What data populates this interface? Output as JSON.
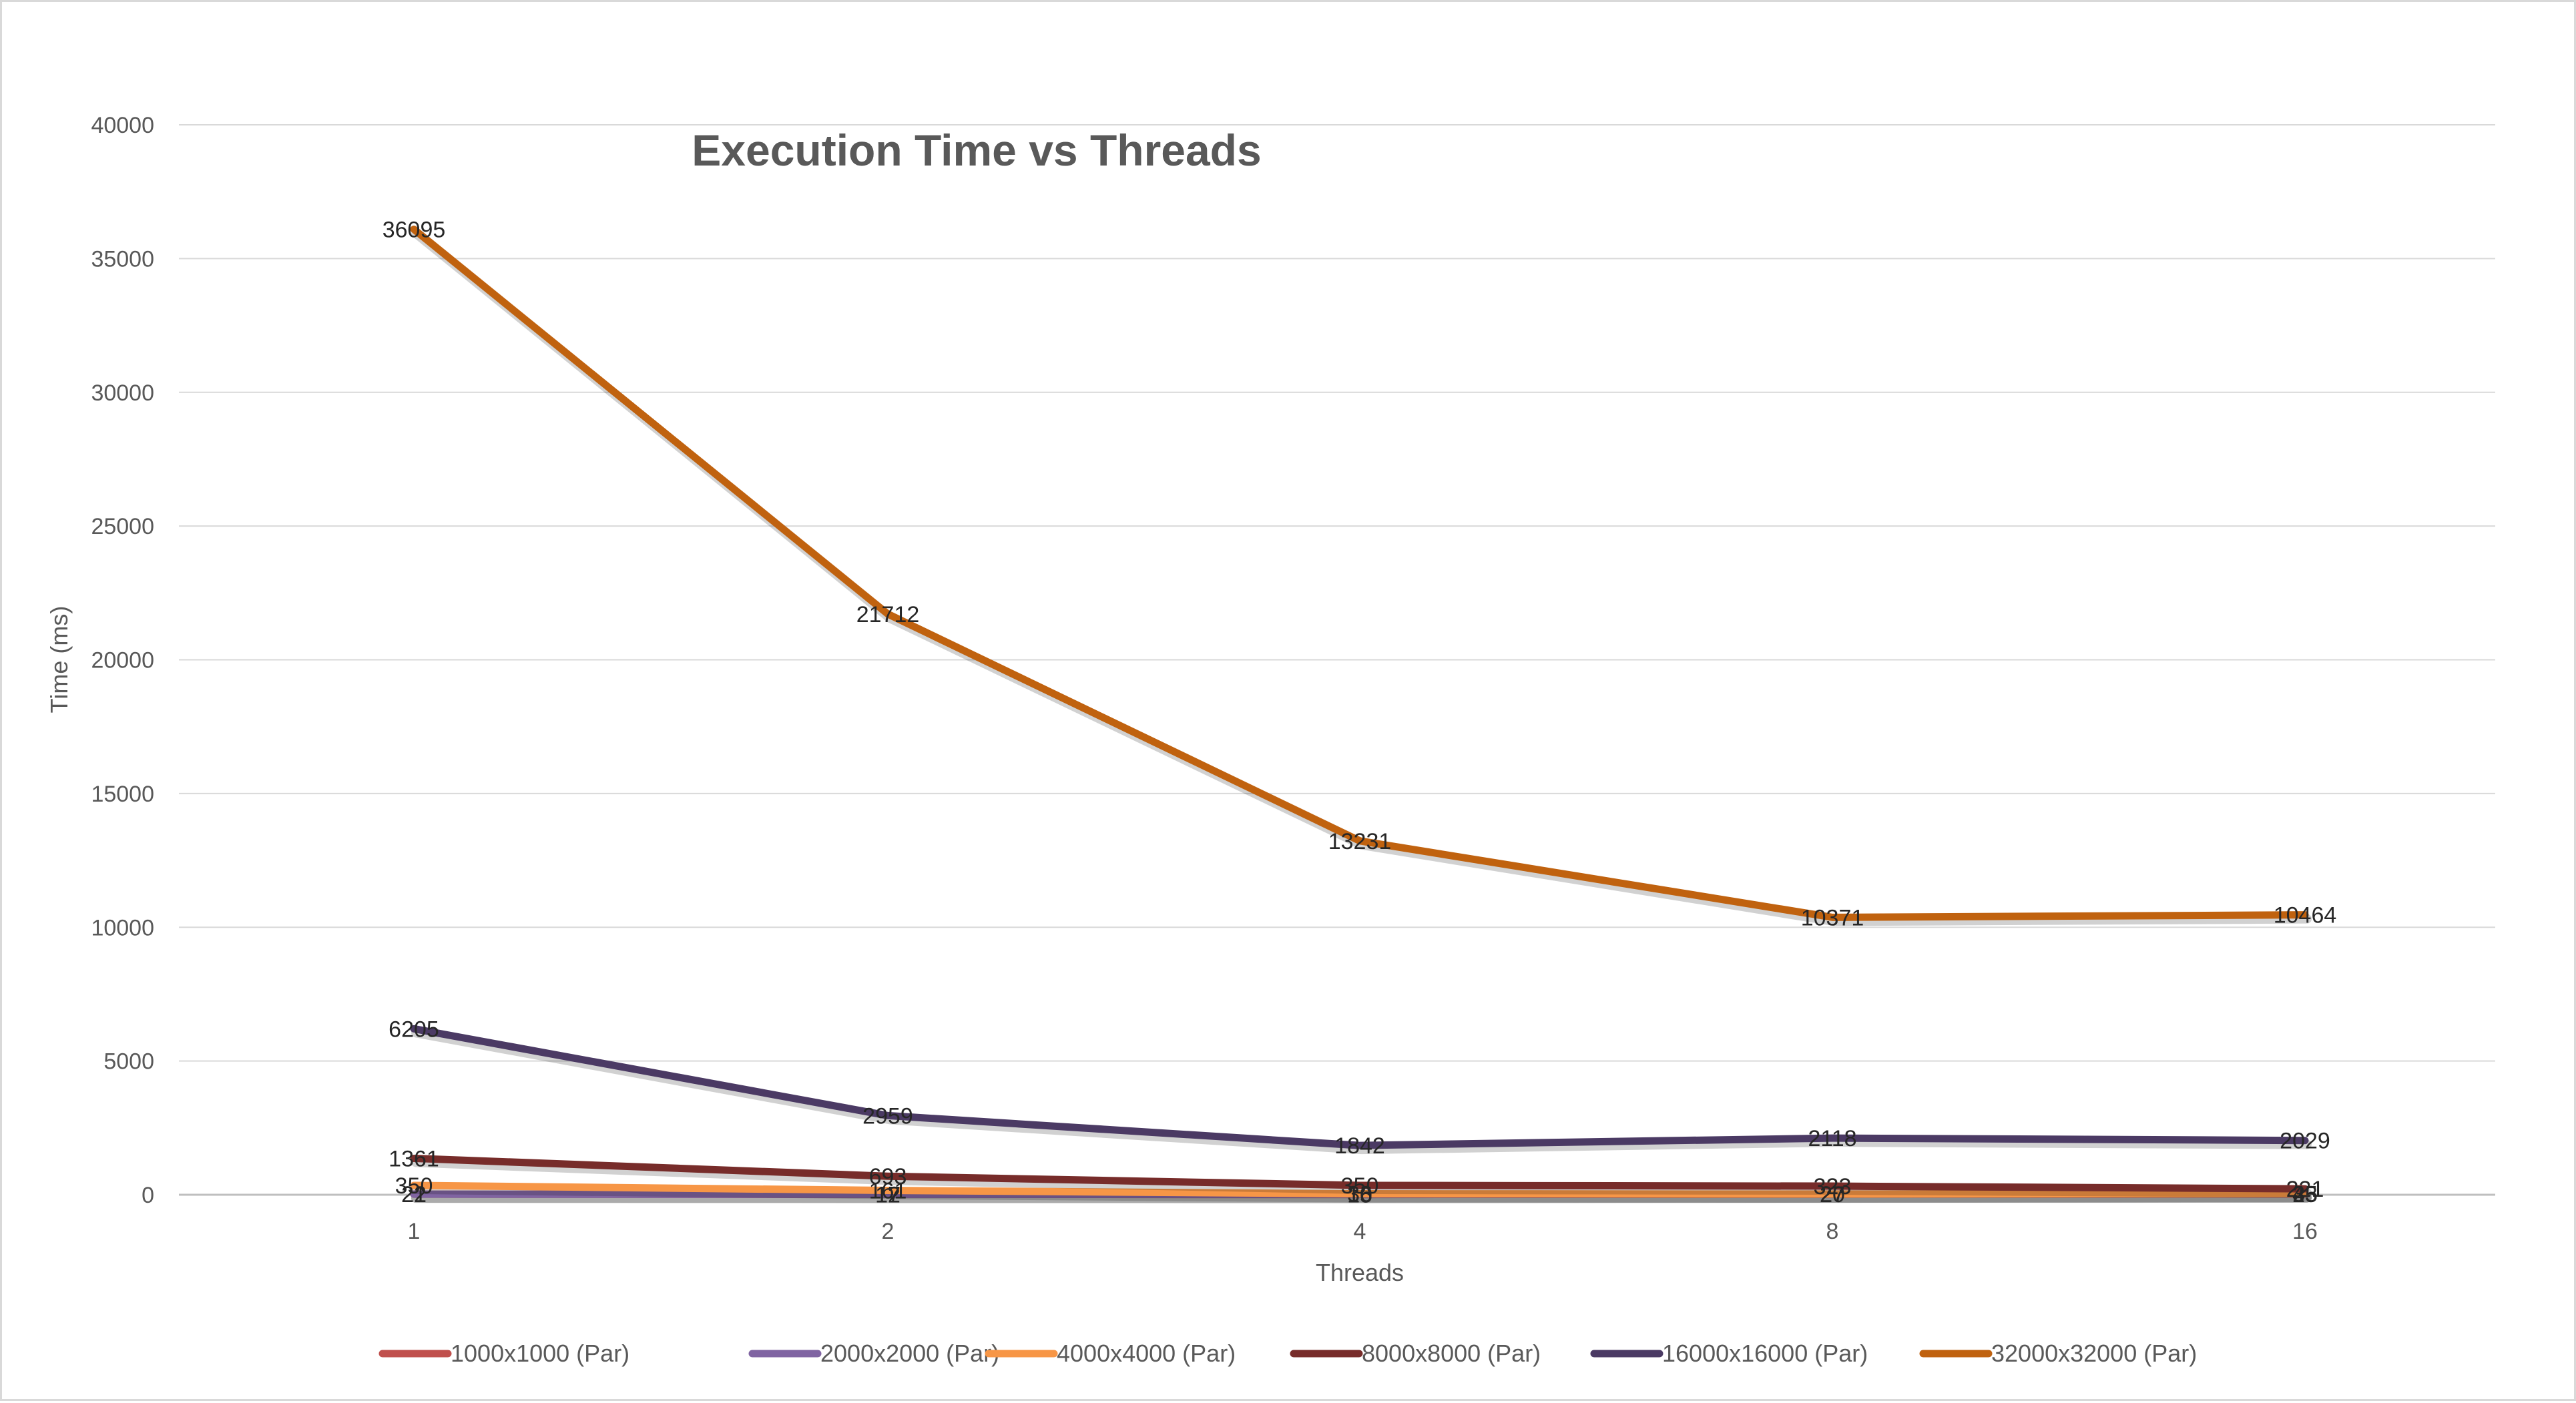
{
  "chart_data": {
    "type": "line",
    "title": "Execution Time vs Threads",
    "xlabel": "Threads",
    "ylabel": "Time (ms)",
    "categories": [
      "1",
      "2",
      "4",
      "8",
      "16"
    ],
    "ylim": [
      0,
      40000
    ],
    "yticks": [
      0,
      5000,
      10000,
      15000,
      20000,
      25000,
      30000,
      35000,
      40000
    ],
    "grid": true,
    "legend_position": "bottom",
    "series": [
      {
        "name": "1000x1000 (Par)",
        "color": "#c0504d",
        "values": [
          22,
          12,
          10,
          20,
          25
        ]
      },
      {
        "name": "2000x2000 (Par)",
        "color": "#8064a2",
        "values": [
          21,
          17,
          15,
          27,
          35
        ]
      },
      {
        "name": "4000x4000 (Par)",
        "color": "#f79646",
        "values": [
          350,
          161,
          36,
          27,
          43
        ]
      },
      {
        "name": "8000x8000 (Par)",
        "color": "#772c2a",
        "values": [
          1361,
          693,
          350,
          323,
          221
        ]
      },
      {
        "name": "16000x16000 (Par)",
        "color": "#4b3a64",
        "values": [
          6205,
          2959,
          1842,
          2118,
          2029
        ]
      },
      {
        "name": "32000x32000 (Par)",
        "color": "#c0620f",
        "values": [
          36095,
          21712,
          13231,
          10371,
          10464
        ]
      }
    ]
  }
}
